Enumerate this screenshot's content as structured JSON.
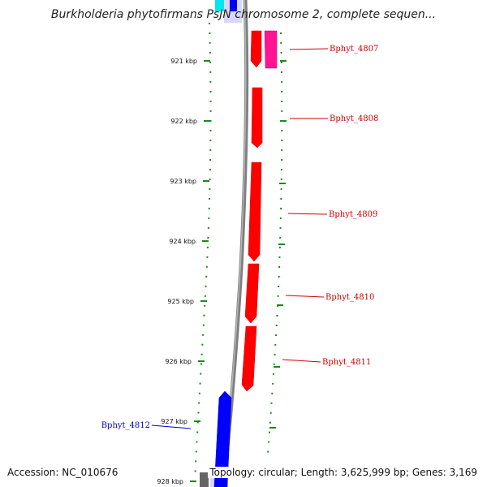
{
  "title": "Burkholderia phytofirmans PsJN chromosome 2, complete sequen...",
  "footer": {
    "accession": "Accession: NC_010676",
    "summary": "Topology: circular; Length: 3,625,999 bp; Genes: 3,169"
  },
  "colors": {
    "forward_cds": "#ff0000",
    "reverse_cds": "#0000ff",
    "other_feature": "#ff1493",
    "label_forward": "#cc0000",
    "label_reverse": "#0000cc",
    "tick": "#1a8a1a",
    "backbone": "#808080"
  },
  "ticks": [
    {
      "label": "921 kbp"
    },
    {
      "label": "922 kbp"
    },
    {
      "label": "923 kbp"
    },
    {
      "label": "924 kbp"
    },
    {
      "label": "925 kbp"
    },
    {
      "label": "926 kbp"
    },
    {
      "label": "927 kbp"
    },
    {
      "label": "928 kbp"
    }
  ],
  "genes": [
    {
      "label": "Bphyt_4807"
    },
    {
      "label": "Bphyt_4808"
    },
    {
      "label": "Bphyt_4809"
    },
    {
      "label": "Bphyt_4810"
    },
    {
      "label": "Bphyt_4811"
    },
    {
      "label": "Bphyt_4812"
    }
  ]
}
